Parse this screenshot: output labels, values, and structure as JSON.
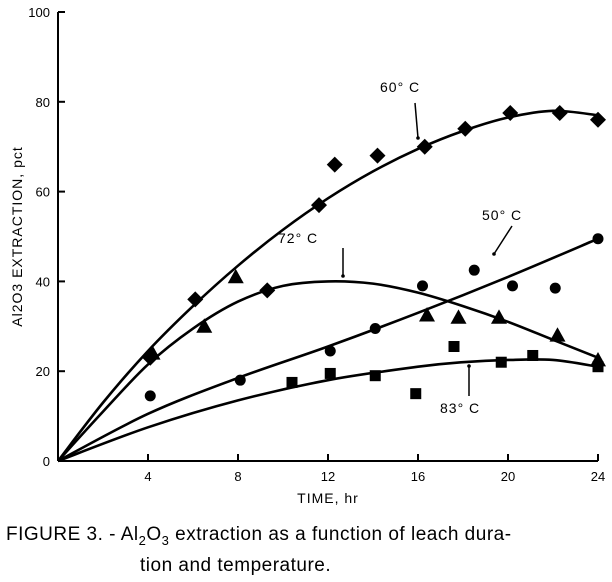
{
  "figure_caption": {
    "prefix": "FIGURE 3. - ",
    "chem_pre": "Al",
    "sub1": "2",
    "chem_mid": "O",
    "sub2": "3",
    "line1_rest": " extraction as a function of leach dura-",
    "line2": "tion and temperature."
  },
  "chart_data": {
    "type": "scatter",
    "title": "",
    "xlabel": "TIME, hr",
    "ylabel": "Al2O3 EXTRACTION, pct",
    "xlim": [
      0,
      24
    ],
    "ylim": [
      0,
      100
    ],
    "x_ticks": [
      4,
      8,
      12,
      16,
      20,
      24
    ],
    "y_ticks": [
      0,
      20,
      40,
      60,
      80,
      100
    ],
    "grid": false,
    "legend": "none",
    "series": [
      {
        "name": "60° C",
        "marker": "diamond",
        "points": [
          [
            4.1,
            23
          ],
          [
            6.1,
            36
          ],
          [
            9.3,
            38
          ],
          [
            11.6,
            57
          ],
          [
            12.3,
            66
          ],
          [
            14.2,
            68
          ],
          [
            16.3,
            70
          ],
          [
            18.1,
            74
          ],
          [
            20.1,
            77.5
          ],
          [
            22.3,
            77.5
          ],
          [
            24,
            76
          ]
        ],
        "curve": [
          [
            0,
            0
          ],
          [
            2,
            13
          ],
          [
            4,
            24.5
          ],
          [
            6,
            34.5
          ],
          [
            8,
            43.5
          ],
          [
            10,
            51.5
          ],
          [
            12,
            58.5
          ],
          [
            14,
            64.5
          ],
          [
            16,
            69.5
          ],
          [
            18,
            73.5
          ],
          [
            20,
            76.5
          ],
          [
            22,
            78
          ],
          [
            24,
            77
          ]
        ]
      },
      {
        "name": "72° C",
        "marker": "triangle",
        "points": [
          [
            4.2,
            24
          ],
          [
            6.5,
            30
          ],
          [
            7.9,
            41
          ],
          [
            16.4,
            32.5
          ],
          [
            17.8,
            32
          ],
          [
            19.6,
            32
          ],
          [
            22.2,
            28
          ],
          [
            24,
            22.5
          ]
        ],
        "curve": [
          [
            0,
            0
          ],
          [
            2,
            11
          ],
          [
            4,
            21.5
          ],
          [
            6,
            29.5
          ],
          [
            8,
            35.5
          ],
          [
            10,
            39
          ],
          [
            12,
            40
          ],
          [
            14,
            39.5
          ],
          [
            16,
            37.5
          ],
          [
            18,
            34.5
          ],
          [
            20,
            31
          ],
          [
            22,
            27
          ],
          [
            24,
            23
          ]
        ]
      },
      {
        "name": "50° C",
        "marker": "circle",
        "points": [
          [
            4.1,
            14.5
          ],
          [
            8.1,
            18
          ],
          [
            12.1,
            24.5
          ],
          [
            14.1,
            29.5
          ],
          [
            16.2,
            39
          ],
          [
            18.5,
            42.5
          ],
          [
            20.2,
            39
          ],
          [
            22.1,
            38.5
          ],
          [
            24,
            49.5
          ]
        ],
        "curve": [
          [
            0,
            0
          ],
          [
            4,
            10.5
          ],
          [
            8,
            18.5
          ],
          [
            12,
            25.5
          ],
          [
            16,
            33
          ],
          [
            20,
            41
          ],
          [
            24,
            49.5
          ]
        ]
      },
      {
        "name": "83° C",
        "marker": "square",
        "points": [
          [
            10.4,
            17.5
          ],
          [
            12.1,
            19.5
          ],
          [
            14.1,
            19
          ],
          [
            15.9,
            15
          ],
          [
            17.6,
            25.5
          ],
          [
            19.7,
            22
          ],
          [
            21.1,
            23.5
          ],
          [
            24,
            21
          ]
        ],
        "curve": [
          [
            0,
            0
          ],
          [
            4,
            7.5
          ],
          [
            8,
            13.5
          ],
          [
            12,
            18
          ],
          [
            16,
            21
          ],
          [
            18,
            22
          ],
          [
            20,
            22.5
          ],
          [
            22,
            22.5
          ],
          [
            24,
            21
          ]
        ]
      }
    ]
  }
}
